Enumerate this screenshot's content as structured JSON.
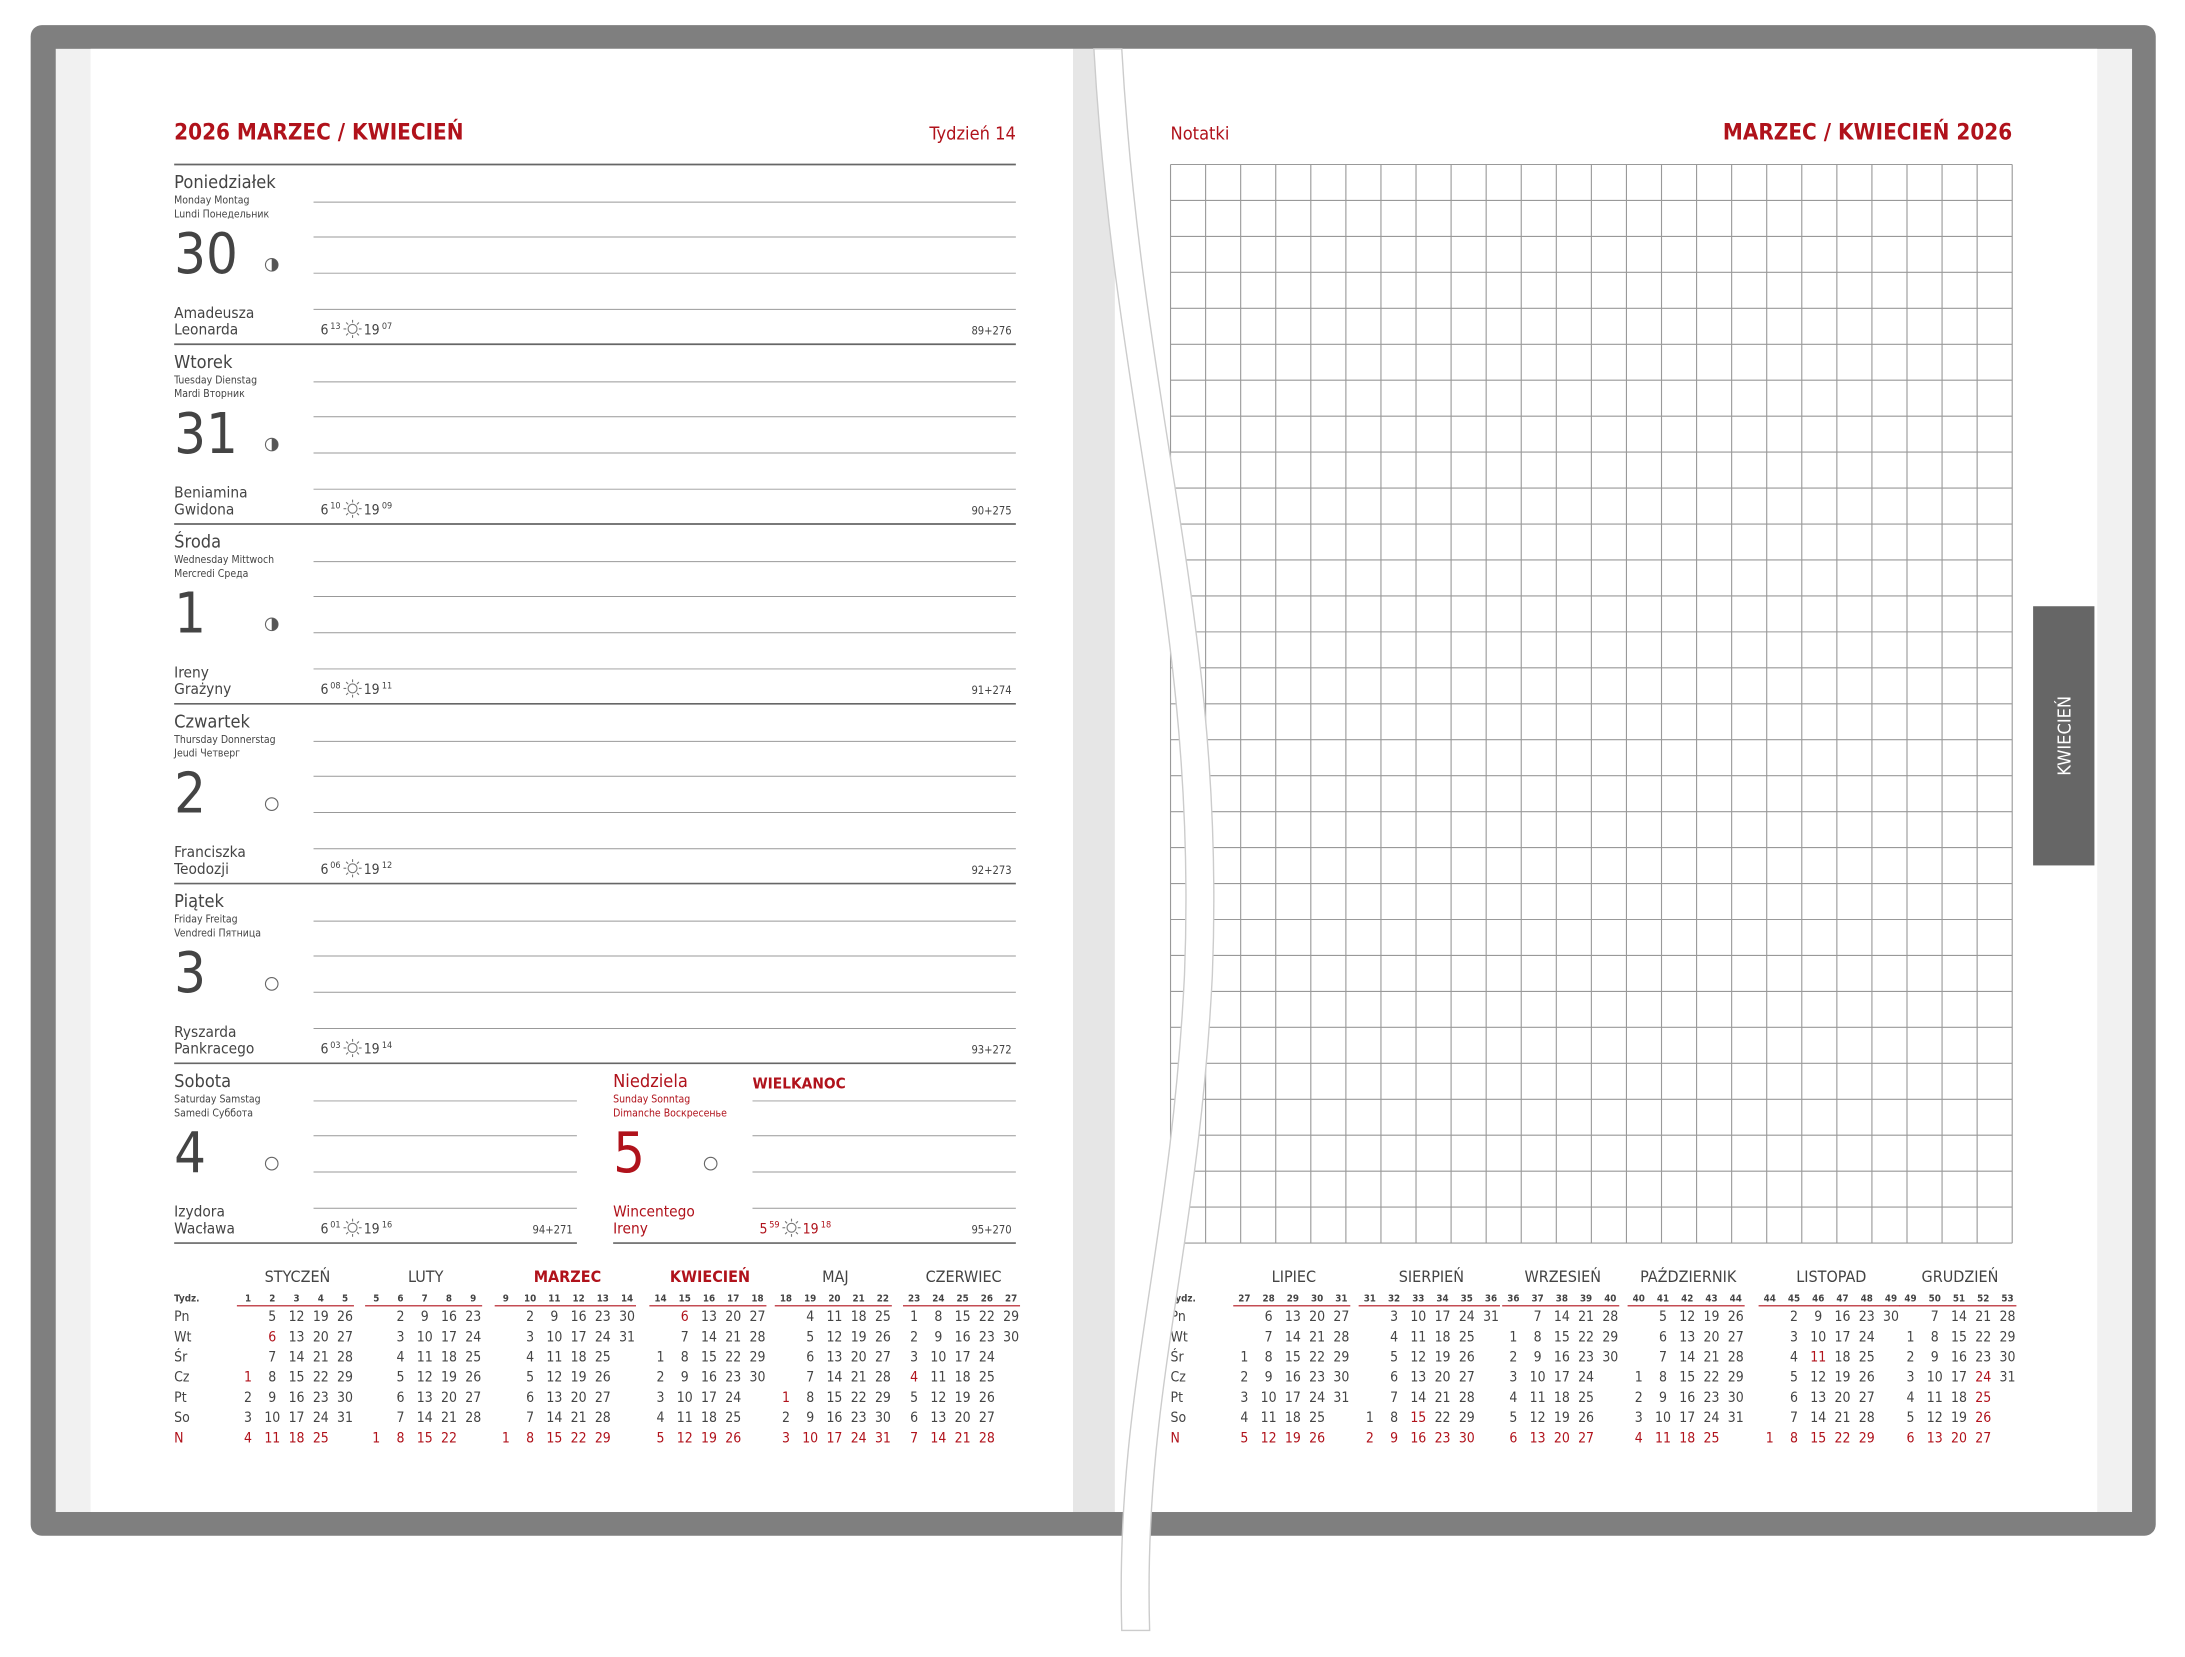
{
  "left_page": {
    "title": "2026 MARZEC / KWIECIEŃ",
    "week": "Tydzień 14",
    "holiday": "WIELKANOC",
    "days": [
      {
        "name": "Poniedziałek",
        "translations": [
          "Monday  Montag",
          "Lundi  Понедельник"
        ],
        "number": 30,
        "moon": "quarter",
        "name_days": [
          "Amadeusza",
          "Leonarda"
        ],
        "sunrise": [
          "6",
          "13"
        ],
        "sunset": [
          "19",
          "07"
        ],
        "count": "89+276"
      },
      {
        "name": "Wtorek",
        "translations": [
          "Tuesday  Dienstag",
          "Mardi  Вторник"
        ],
        "number": 31,
        "moon": "quarter",
        "name_days": [
          "Beniamina",
          "Gwidona"
        ],
        "sunrise": [
          "6",
          "10"
        ],
        "sunset": [
          "19",
          "09"
        ],
        "count": "90+275"
      },
      {
        "name": "Środa",
        "translations": [
          "Wednesday  Mittwoch",
          "Mercredi  Среда"
        ],
        "number": 1,
        "moon": "quarter",
        "name_days": [
          "Ireny",
          "Grażyny"
        ],
        "sunrise": [
          "6",
          "08"
        ],
        "sunset": [
          "19",
          "11"
        ],
        "count": "91+274"
      },
      {
        "name": "Czwartek",
        "translations": [
          "Thursday  Donnerstag",
          "Jeudi  Четверг"
        ],
        "number": 2,
        "moon": "full",
        "name_days": [
          "Franciszka",
          "Teodozji"
        ],
        "sunrise": [
          "6",
          "06"
        ],
        "sunset": [
          "19",
          "12"
        ],
        "count": "92+273"
      },
      {
        "name": "Piątek",
        "translations": [
          "Friday  Freitag",
          "Vendredi  Пятница"
        ],
        "number": 3,
        "moon": "full",
        "name_days": [
          "Ryszarda",
          "Pankracego"
        ],
        "sunrise": [
          "6",
          "03"
        ],
        "sunset": [
          "19",
          "14"
        ],
        "count": "93+272"
      },
      {
        "name": "Sobota",
        "translations": [
          "Saturday  Samstag",
          "Samedi  Суббота"
        ],
        "number": 4,
        "moon": "full",
        "name_days": [
          "Izydora",
          "Wacława"
        ],
        "sunrise": [
          "6",
          "01"
        ],
        "sunset": [
          "19",
          "16"
        ],
        "count": "94+271"
      },
      {
        "name": "Niedziela",
        "translations": [
          "Sunday  Sonntag",
          "Dimanche  Воскресенье"
        ],
        "number": 5,
        "moon": "full",
        "name_days": [
          "Wincentego",
          "Ireny"
        ],
        "sunrise": [
          "5",
          "59"
        ],
        "sunset": [
          "19",
          "18"
        ],
        "count": "95+270",
        "highlight": true
      }
    ]
  },
  "right_page": {
    "notes_label": "Notatki",
    "title": "MARZEC / KWIECIEŃ 2026",
    "tab": "KWIECIEŃ"
  },
  "mini_calendar": {
    "week_label": "Tydz.",
    "weekdays": [
      "Pn",
      "Wt",
      "Śr",
      "Cz",
      "Pt",
      "So",
      "N"
    ],
    "left_months": [
      {
        "name": "STYCZEŃ",
        "weeks": [
          1,
          2,
          3,
          4,
          5
        ],
        "holidays": [
          1,
          6
        ],
        "rows": [
          [
            null,
            5,
            12,
            19,
            26
          ],
          [
            null,
            6,
            13,
            20,
            27
          ],
          [
            null,
            7,
            14,
            21,
            28
          ],
          [
            1,
            8,
            15,
            22,
            29
          ],
          [
            2,
            9,
            16,
            23,
            30
          ],
          [
            3,
            10,
            17,
            24,
            31
          ],
          [
            4,
            11,
            18,
            25
          ]
        ]
      },
      {
        "name": "LUTY",
        "weeks": [
          5,
          6,
          7,
          8,
          9
        ],
        "holidays": [],
        "rows": [
          [
            null,
            2,
            9,
            16,
            23
          ],
          [
            null,
            3,
            10,
            17,
            24
          ],
          [
            null,
            4,
            11,
            18,
            25
          ],
          [
            null,
            5,
            12,
            19,
            26
          ],
          [
            null,
            6,
            13,
            20,
            27
          ],
          [
            null,
            7,
            14,
            21,
            28
          ],
          [
            1,
            8,
            15,
            22
          ]
        ]
      },
      {
        "name": "MARZEC",
        "current": true,
        "weeks": [
          9,
          10,
          11,
          12,
          13,
          14
        ],
        "holidays": [],
        "rows": [
          [
            null,
            2,
            9,
            16,
            23,
            30
          ],
          [
            null,
            3,
            10,
            17,
            24,
            31
          ],
          [
            null,
            4,
            11,
            18,
            25
          ],
          [
            null,
            5,
            12,
            19,
            26
          ],
          [
            null,
            6,
            13,
            20,
            27
          ],
          [
            null,
            7,
            14,
            21,
            28
          ],
          [
            1,
            8,
            15,
            22,
            29
          ]
        ]
      },
      {
        "name": "KWIECIEŃ",
        "current": true,
        "weeks": [
          14,
          15,
          16,
          17,
          18
        ],
        "holidays": [
          6
        ],
        "rows": [
          [
            null,
            6,
            13,
            20,
            27
          ],
          [
            null,
            7,
            14,
            21,
            28
          ],
          [
            1,
            8,
            15,
            22,
            29
          ],
          [
            2,
            9,
            16,
            23,
            30
          ],
          [
            3,
            10,
            17,
            24
          ],
          [
            4,
            11,
            18,
            25
          ],
          [
            5,
            12,
            19,
            26
          ]
        ]
      },
      {
        "name": "MAJ",
        "weeks": [
          18,
          19,
          20,
          21,
          22
        ],
        "holidays": [
          1,
          3
        ],
        "rows": [
          [
            null,
            4,
            11,
            18,
            25
          ],
          [
            null,
            5,
            12,
            19,
            26
          ],
          [
            null,
            6,
            13,
            20,
            27
          ],
          [
            null,
            7,
            14,
            21,
            28
          ],
          [
            1,
            8,
            15,
            22,
            29
          ],
          [
            2,
            9,
            16,
            23,
            30
          ],
          [
            3,
            10,
            17,
            24,
            31
          ]
        ]
      },
      {
        "name": "CZERWIEC",
        "weeks": [
          23,
          24,
          25,
          26,
          27
        ],
        "holidays": [
          4
        ],
        "rows": [
          [
            1,
            8,
            15,
            22,
            29
          ],
          [
            2,
            9,
            16,
            23,
            30
          ],
          [
            3,
            10,
            17,
            24
          ],
          [
            4,
            11,
            18,
            25
          ],
          [
            5,
            12,
            19,
            26
          ],
          [
            6,
            13,
            20,
            27
          ],
          [
            7,
            14,
            21,
            28
          ]
        ]
      }
    ],
    "right_months": [
      {
        "name": "LIPIEC",
        "weeks": [
          27,
          28,
          29,
          30,
          31
        ],
        "holidays": [],
        "rows": [
          [
            null,
            6,
            13,
            20,
            27
          ],
          [
            null,
            7,
            14,
            21,
            28
          ],
          [
            1,
            8,
            15,
            22,
            29
          ],
          [
            2,
            9,
            16,
            23,
            30
          ],
          [
            3,
            10,
            17,
            24,
            31
          ],
          [
            4,
            11,
            18,
            25
          ],
          [
            5,
            12,
            19,
            26
          ]
        ]
      },
      {
        "name": "SIERPIEŃ",
        "weeks": [
          31,
          32,
          33,
          34,
          35,
          36
        ],
        "holidays": [
          15
        ],
        "rows": [
          [
            null,
            3,
            10,
            17,
            24,
            31
          ],
          [
            null,
            4,
            11,
            18,
            25
          ],
          [
            null,
            5,
            12,
            19,
            26
          ],
          [
            null,
            6,
            13,
            20,
            27
          ],
          [
            null,
            7,
            14,
            21,
            28
          ],
          [
            1,
            8,
            15,
            22,
            29
          ],
          [
            2,
            9,
            16,
            23,
            30
          ]
        ]
      },
      {
        "name": "WRZESIEŃ",
        "weeks": [
          36,
          37,
          38,
          39,
          40
        ],
        "holidays": [],
        "rows": [
          [
            null,
            7,
            14,
            21,
            28
          ],
          [
            1,
            8,
            15,
            22,
            29
          ],
          [
            2,
            9,
            16,
            23,
            30
          ],
          [
            3,
            10,
            17,
            24
          ],
          [
            4,
            11,
            18,
            25
          ],
          [
            5,
            12,
            19,
            26
          ],
          [
            6,
            13,
            20,
            27
          ]
        ]
      },
      {
        "name": "PAŹDZIERNIK",
        "weeks": [
          40,
          41,
          42,
          43,
          44
        ],
        "holidays": [],
        "rows": [
          [
            null,
            5,
            12,
            19,
            26
          ],
          [
            null,
            6,
            13,
            20,
            27
          ],
          [
            null,
            7,
            14,
            21,
            28
          ],
          [
            1,
            8,
            15,
            22,
            29
          ],
          [
            2,
            9,
            16,
            23,
            30
          ],
          [
            3,
            10,
            17,
            24,
            31
          ],
          [
            4,
            11,
            18,
            25
          ]
        ]
      },
      {
        "name": "LISTOPAD",
        "weeks": [
          44,
          45,
          46,
          47,
          48,
          49
        ],
        "holidays": [
          11
        ],
        "rows": [
          [
            null,
            2,
            9,
            16,
            23,
            30
          ],
          [
            null,
            3,
            10,
            17,
            24
          ],
          [
            null,
            4,
            11,
            18,
            25
          ],
          [
            null,
            5,
            12,
            19,
            26
          ],
          [
            null,
            6,
            13,
            20,
            27
          ],
          [
            null,
            7,
            14,
            21,
            28
          ],
          [
            1,
            8,
            15,
            22,
            29
          ]
        ]
      },
      {
        "name": "GRUDZIEŃ",
        "weeks": [
          49,
          50,
          51,
          52,
          53
        ],
        "holidays": [
          24,
          25,
          26
        ],
        "rows": [
          [
            null,
            7,
            14,
            21,
            28
          ],
          [
            1,
            8,
            15,
            22,
            29
          ],
          [
            2,
            9,
            16,
            23,
            30
          ],
          [
            3,
            10,
            17,
            24,
            31
          ],
          [
            4,
            11,
            18,
            25
          ],
          [
            5,
            12,
            19,
            26
          ],
          [
            6,
            13,
            20,
            27
          ]
        ]
      }
    ]
  }
}
